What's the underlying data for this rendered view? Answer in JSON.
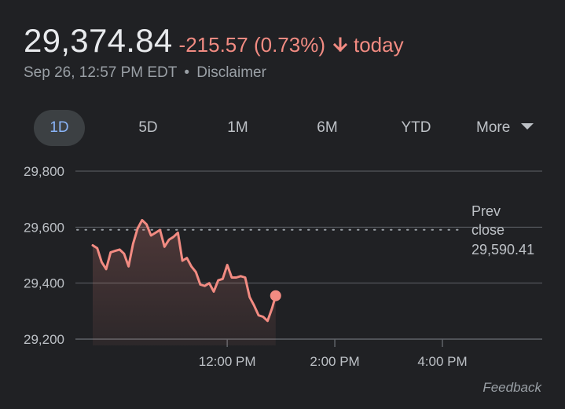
{
  "quote": {
    "price": "29,374.84",
    "change": "-215.57 (0.73%)",
    "direction_icon": "arrow-down-icon",
    "period_label": "today",
    "timestamp": "Sep 26, 12:57 PM EDT",
    "separator": "•",
    "disclaimer": "Disclaimer"
  },
  "colors": {
    "background": "#202124",
    "negative": "#f28b82",
    "active_tab_text": "#8ab4f8",
    "active_tab_bg": "#3c4043",
    "grid": "#5f6368"
  },
  "tabs": [
    {
      "label": "1D",
      "active": true
    },
    {
      "label": "5D",
      "active": false
    },
    {
      "label": "1M",
      "active": false
    },
    {
      "label": "6M",
      "active": false
    },
    {
      "label": "YTD",
      "active": false
    }
  ],
  "more_label": "More",
  "feedback_label": "Feedback",
  "chart_data": {
    "type": "area",
    "title": "",
    "xlabel": "",
    "ylabel": "",
    "y_ticks": [
      29200,
      29400,
      29600,
      29800
    ],
    "y_tick_labels": [
      "29,200",
      "29,400",
      "29,600",
      "29,800"
    ],
    "ylim": [
      29180,
      29810
    ],
    "x_range_minutes": [
      570,
      960
    ],
    "x_ticks": [
      {
        "minutes": 720,
        "label": "12:00 PM"
      },
      {
        "minutes": 840,
        "label": "2:00 PM"
      },
      {
        "minutes": 960,
        "label": "4:00 PM"
      }
    ],
    "previous_close": {
      "value": 29590.41,
      "label_line1": "Prev",
      "label_line2": "close",
      "value_label": "29,590.41"
    },
    "series": [
      {
        "values": [
          [
            570,
            29535
          ],
          [
            575,
            29525
          ],
          [
            580,
            29475
          ],
          [
            585,
            29450
          ],
          [
            590,
            29510
          ],
          [
            595,
            29515
          ],
          [
            600,
            29520
          ],
          [
            605,
            29505
          ],
          [
            610,
            29460
          ],
          [
            615,
            29540
          ],
          [
            620,
            29595
          ],
          [
            625,
            29625
          ],
          [
            630,
            29610
          ],
          [
            635,
            29570
          ],
          [
            640,
            29580
          ],
          [
            645,
            29590
          ],
          [
            650,
            29530
          ],
          [
            655,
            29555
          ],
          [
            660,
            29565
          ],
          [
            665,
            29580
          ],
          [
            670,
            29480
          ],
          [
            675,
            29490
          ],
          [
            680,
            29460
          ],
          [
            685,
            29440
          ],
          [
            690,
            29395
          ],
          [
            695,
            29390
          ],
          [
            700,
            29400
          ],
          [
            705,
            29370
          ],
          [
            710,
            29410
          ],
          [
            715,
            29415
          ],
          [
            720,
            29465
          ],
          [
            725,
            29420
          ],
          [
            730,
            29420
          ],
          [
            735,
            29425
          ],
          [
            740,
            29420
          ],
          [
            745,
            29350
          ],
          [
            750,
            29320
          ],
          [
            755,
            29285
          ],
          [
            760,
            29280
          ],
          [
            765,
            29265
          ],
          [
            770,
            29310
          ],
          [
            774,
            29355
          ]
        ],
        "last_point": [
          774,
          29355
        ]
      }
    ]
  }
}
